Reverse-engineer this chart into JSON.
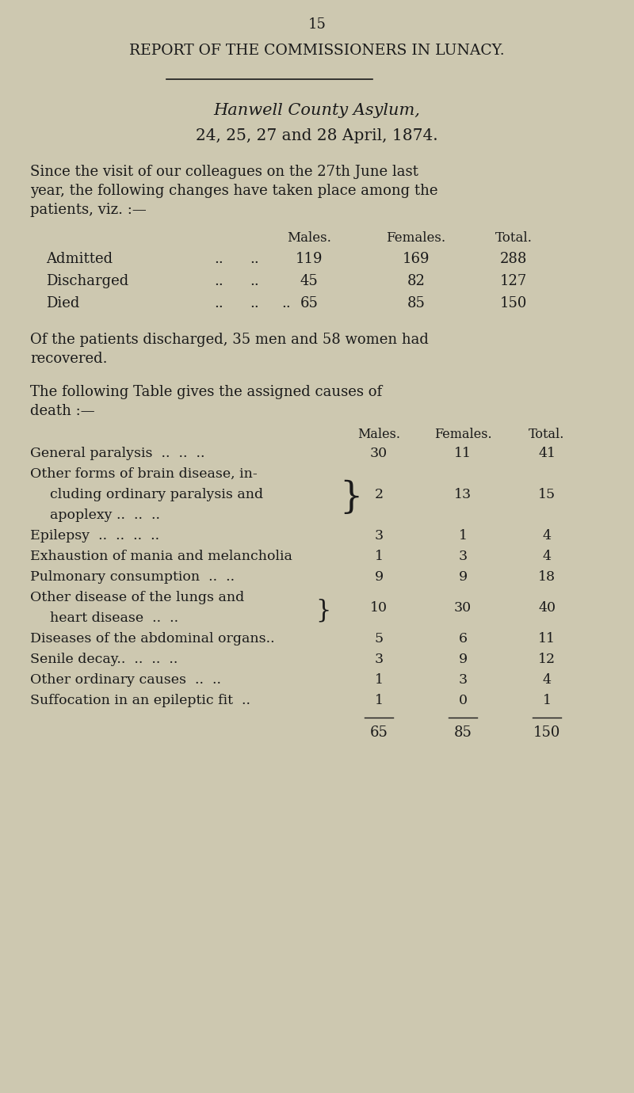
{
  "page_number": "15",
  "bg_color": "#cdc8b0",
  "title_main": "REPORT OF THE COMMISSIONERS IN LUNACY.",
  "title_sub1": "Hanwell County Asylum,",
  "title_sub2": "24, 25, 27 and 28 April, 1874.",
  "intro_line1": "Since the visit of our colleagues on the 27th June last",
  "intro_line2": "year, the following changes have taken place among the",
  "intro_line3": "patients, viz. :—",
  "table1_header": [
    "Males.",
    "Females.",
    "Total."
  ],
  "table1_labels": [
    "Admitted",
    "Discharged",
    "Died"
  ],
  "table1_dots1": [
    "..",
    "..",
    ".."
  ],
  "table1_dots2": [
    "..",
    "..",
    ".."
  ],
  "table1_dots3": [
    "",
    "",
    ".."
  ],
  "table1_males": [
    "119",
    "45",
    "65"
  ],
  "table1_females": [
    "169",
    "82",
    "85"
  ],
  "table1_totals": [
    "288",
    "127",
    "150"
  ],
  "middle_line1": "Of the patients discharged, 35 men and 58 women had",
  "middle_line2": "recovered.",
  "table2_intro1": "The following Table gives the assigned causes of",
  "table2_intro2": "death :—",
  "table2_header": [
    "Males.",
    "Females.",
    "Total."
  ],
  "table2_cause0_lines": [
    "General paralysis  ..  ..  .."
  ],
  "table2_cause1_lines": [
    "Other forms of brain disease, in-",
    "  cluding ordinary paralysis and",
    "  apoplexy ..  ..  .."
  ],
  "table2_cause2_lines": [
    "Epilepsy  ..  ..  ..  .."
  ],
  "table2_cause3_lines": [
    "Exhaustion of mania and melancholia"
  ],
  "table2_cause4_lines": [
    "Pulmonary consumption  ..  .."
  ],
  "table2_cause5_lines": [
    "Other disease of the lungs and",
    "  heart disease  ..  .."
  ],
  "table2_cause6_lines": [
    "Diseases of the abdominal organs.."
  ],
  "table2_cause7_lines": [
    "Senile decay..  ..  ..  .."
  ],
  "table2_cause8_lines": [
    "Other ordinary causes  ..  .."
  ],
  "table2_cause9_lines": [
    "Suffocation in an epileptic fit  .."
  ],
  "table2_brace1": true,
  "table2_brace5": true,
  "table2_males": [
    "30",
    "2",
    "3",
    "1",
    "9",
    "10",
    "5",
    "3",
    "1",
    "1"
  ],
  "table2_females": [
    "11",
    "13",
    "1",
    "3",
    "9",
    "30",
    "6",
    "9",
    "3",
    "0"
  ],
  "table2_totals": [
    "41",
    "15",
    "4",
    "4",
    "18",
    "40",
    "11",
    "12",
    "4",
    "1"
  ],
  "table2_total_males": "65",
  "table2_total_females": "85",
  "table2_total_total": "150",
  "text_color": "#1a1a1a",
  "line_color": "#1a1a1a"
}
